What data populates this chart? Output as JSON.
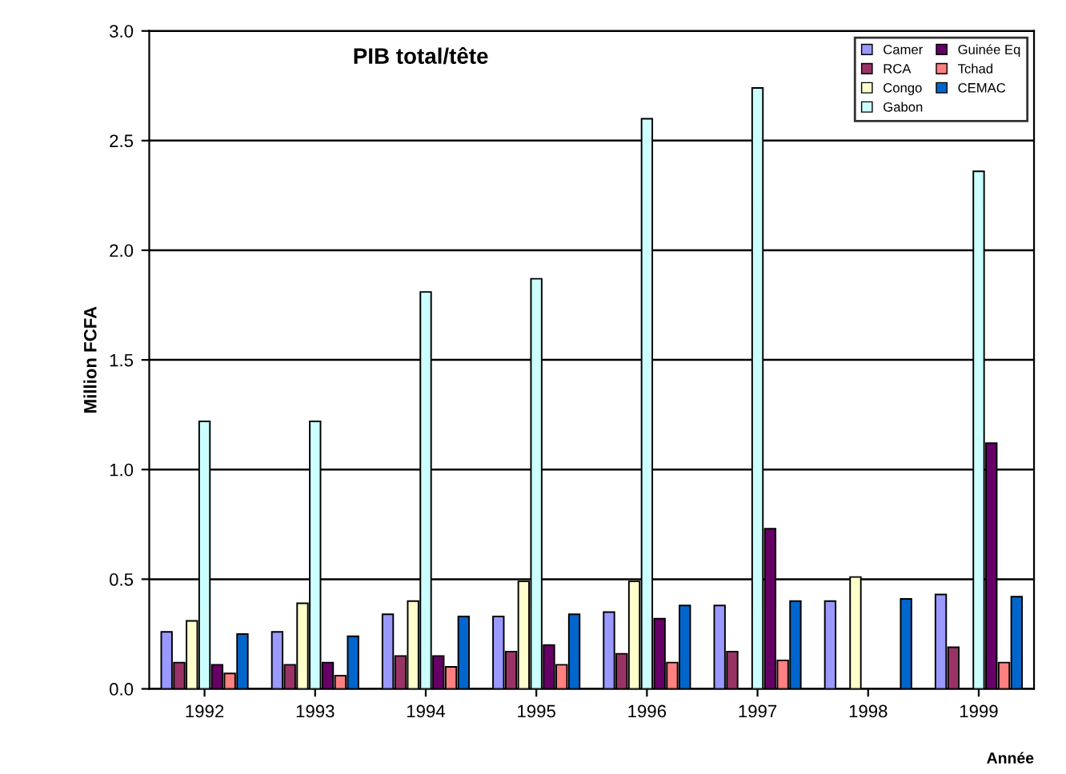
{
  "chart_data": {
    "type": "bar",
    "title": "PIB total/tête",
    "xlabel": "Année",
    "ylabel": "Million FCFA",
    "categories": [
      "1992",
      "1993",
      "1994",
      "1995",
      "1996",
      "1997",
      "1998",
      "1999"
    ],
    "series": [
      {
        "name": "Camer",
        "color": "#9999ff",
        "values": [
          0.26,
          0.26,
          0.34,
          0.33,
          0.35,
          0.38,
          0.4,
          0.43
        ]
      },
      {
        "name": "RCA",
        "color": "#993366",
        "values": [
          0.12,
          0.11,
          0.15,
          0.17,
          0.16,
          0.17,
          null,
          0.19
        ]
      },
      {
        "name": "Congo",
        "color": "#ffffcc",
        "values": [
          0.31,
          0.39,
          0.4,
          0.49,
          0.49,
          null,
          0.51,
          null
        ]
      },
      {
        "name": "Gabon",
        "color": "#ccffff",
        "values": [
          1.22,
          1.22,
          1.81,
          1.87,
          2.6,
          2.74,
          null,
          2.36
        ]
      },
      {
        "name": "Guinée Eq",
        "color": "#660066",
        "values": [
          0.11,
          0.12,
          0.15,
          0.2,
          0.32,
          0.73,
          null,
          1.12
        ]
      },
      {
        "name": "Tchad",
        "color": "#ff8080",
        "values": [
          0.07,
          0.06,
          0.1,
          0.11,
          0.12,
          0.13,
          null,
          0.12
        ]
      },
      {
        "name": "CEMAC",
        "color": "#0066cc",
        "values": [
          0.25,
          0.24,
          0.33,
          0.34,
          0.38,
          0.4,
          0.41,
          0.42
        ]
      }
    ],
    "ylim": [
      0,
      3.0
    ],
    "yticks": [
      {
        "value": 0,
        "label": "0.0"
      },
      0.5,
      {
        "value": 1,
        "label": "1.0"
      },
      1.5,
      {
        "value": 2,
        "label": "2.0"
      },
      2.5,
      {
        "value": 3,
        "label": "3.0"
      }
    ],
    "grid": "y",
    "legend": "top right"
  }
}
